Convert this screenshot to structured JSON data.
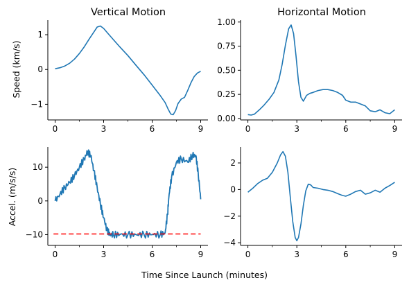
{
  "figure": {
    "xlabel": "Time Since Launch (minutes)"
  },
  "chart_data": [
    {
      "type": "line",
      "title": "Vertical Motion",
      "xlabel": "",
      "ylabel": "Speed (km/s)",
      "xlim": [
        -0.45,
        9.45
      ],
      "ylim": [
        -1.45,
        1.42
      ],
      "xticks": [
        0,
        3,
        6,
        9
      ],
      "xticklabels": [
        "0",
        "3",
        "6",
        "9"
      ],
      "xminor": [
        1.5,
        4.5,
        7.5
      ],
      "yticks": [
        -1,
        0,
        1
      ],
      "yticklabels": [
        "−1",
        "0",
        "1"
      ],
      "series": [
        {
          "color": "#1f77b4",
          "noise": 0,
          "x": [
            0,
            0.3,
            0.6,
            0.9,
            1.2,
            1.5,
            1.8,
            2.1,
            2.4,
            2.6,
            2.8,
            3.0,
            3.3,
            3.6,
            4.0,
            4.5,
            5.0,
            5.5,
            6.0,
            6.5,
            6.8,
            7.0,
            7.15,
            7.3,
            7.45,
            7.6,
            7.8,
            8.0,
            8.2,
            8.4,
            8.6,
            8.8,
            9.0
          ],
          "y": [
            0.02,
            0.05,
            0.1,
            0.18,
            0.3,
            0.46,
            0.65,
            0.87,
            1.08,
            1.22,
            1.25,
            1.18,
            1.02,
            0.86,
            0.65,
            0.4,
            0.12,
            -0.15,
            -0.45,
            -0.75,
            -0.95,
            -1.15,
            -1.28,
            -1.3,
            -1.18,
            -0.98,
            -0.85,
            -0.8,
            -0.6,
            -0.38,
            -0.2,
            -0.1,
            -0.05
          ]
        }
      ]
    },
    {
      "type": "line",
      "title": "Horizontal Motion",
      "xlabel": "",
      "ylabel": "",
      "xlim": [
        -0.45,
        9.45
      ],
      "ylim": [
        -0.015,
        1.02
      ],
      "xticks": [
        0,
        3,
        6,
        9
      ],
      "xticklabels": [
        "0",
        "3",
        "6",
        "9"
      ],
      "xminor": [
        1.5,
        4.5,
        7.5
      ],
      "yticks": [
        0,
        0.25,
        0.5,
        0.75,
        1.0
      ],
      "yticklabels": [
        "0.00",
        "0.25",
        "0.50",
        "0.75",
        "1.00"
      ],
      "series": [
        {
          "color": "#1f77b4",
          "noise": 0,
          "x": [
            0,
            0.2,
            0.4,
            0.7,
            1.0,
            1.3,
            1.6,
            1.9,
            2.1,
            2.3,
            2.5,
            2.65,
            2.8,
            2.95,
            3.1,
            3.25,
            3.4,
            3.6,
            3.8,
            4.0,
            4.3,
            4.6,
            4.9,
            5.2,
            5.5,
            5.8,
            6.0,
            6.3,
            6.6,
            6.9,
            7.2,
            7.5,
            7.8,
            8.1,
            8.4,
            8.7,
            9.0
          ],
          "y": [
            0.04,
            0.035,
            0.045,
            0.09,
            0.14,
            0.2,
            0.27,
            0.4,
            0.56,
            0.76,
            0.93,
            0.97,
            0.88,
            0.65,
            0.38,
            0.22,
            0.18,
            0.24,
            0.26,
            0.27,
            0.29,
            0.3,
            0.3,
            0.29,
            0.27,
            0.24,
            0.19,
            0.17,
            0.17,
            0.15,
            0.13,
            0.08,
            0.07,
            0.09,
            0.06,
            0.05,
            0.09
          ]
        }
      ]
    },
    {
      "type": "line",
      "title": "",
      "xlabel": "",
      "ylabel": "Accel. (m/s/s)",
      "xlim": [
        -0.45,
        9.45
      ],
      "ylim": [
        -13.2,
        16.0
      ],
      "xticks": [
        0,
        3,
        6,
        9
      ],
      "xticklabels": [
        "0",
        "3",
        "6",
        "9"
      ],
      "xminor": [
        1.5,
        4.5,
        7.5
      ],
      "yticks": [
        -10,
        0,
        10
      ],
      "yticklabels": [
        "−10",
        "0",
        "10"
      ],
      "series": [
        {
          "color": "#1f77b4",
          "noise": 0.5,
          "x": [
            0,
            0.3,
            0.6,
            0.9,
            1.2,
            1.5,
            1.8,
            2.0,
            2.2,
            2.4,
            2.6,
            2.8,
            3.0,
            3.2,
            3.4,
            3.6,
            4.0,
            4.5,
            5.0,
            5.5,
            6.0,
            6.5,
            6.8,
            6.95,
            7.05,
            7.2,
            7.5,
            7.8,
            8.2,
            8.5,
            8.7,
            8.85,
            9.0
          ],
          "y": [
            0,
            2,
            4,
            5.5,
            7.5,
            10,
            12.5,
            14.5,
            13.5,
            9,
            4,
            -1,
            -5,
            -8.5,
            -10,
            -10,
            -10,
            -10,
            -10,
            -10,
            -10,
            -10,
            -9.5,
            -4,
            2,
            7,
            11.5,
            12.5,
            11.5,
            13.5,
            13.5,
            8,
            0.5
          ]
        },
        {
          "color": "#ff0000",
          "dash": true,
          "noise": 0,
          "x": [
            -0.1,
            9.0
          ],
          "y": [
            -9.8,
            -9.8
          ]
        }
      ]
    },
    {
      "type": "line",
      "title": "",
      "xlabel": "",
      "ylabel": "",
      "xlim": [
        -0.45,
        9.45
      ],
      "ylim": [
        -4.2,
        3.2
      ],
      "xticks": [
        0,
        3,
        6,
        9
      ],
      "xticklabels": [
        "0",
        "3",
        "6",
        "9"
      ],
      "xminor": [
        1.5,
        4.5,
        7.5
      ],
      "yticks": [
        -4,
        -2,
        0,
        2
      ],
      "yticklabels": [
        "−4",
        "−2",
        "0",
        "2"
      ],
      "series": [
        {
          "color": "#1f77b4",
          "noise": 0,
          "x": [
            0,
            0.3,
            0.6,
            0.9,
            1.2,
            1.5,
            1.8,
            2.0,
            2.15,
            2.3,
            2.45,
            2.6,
            2.75,
            2.9,
            3.0,
            3.1,
            3.25,
            3.4,
            3.55,
            3.7,
            3.85,
            4.0,
            4.3,
            4.6,
            4.9,
            5.2,
            5.5,
            5.8,
            6.0,
            6.3,
            6.6,
            6.9,
            7.2,
            7.5,
            7.8,
            8.1,
            8.4,
            8.7,
            9.0
          ],
          "y": [
            -0.2,
            0.1,
            0.45,
            0.7,
            0.85,
            1.3,
            2.0,
            2.6,
            2.85,
            2.5,
            1.3,
            -0.6,
            -2.4,
            -3.6,
            -3.85,
            -3.6,
            -2.6,
            -1.2,
            -0.1,
            0.4,
            0.35,
            0.15,
            0.1,
            0.0,
            -0.05,
            -0.15,
            -0.3,
            -0.45,
            -0.5,
            -0.35,
            -0.15,
            -0.05,
            -0.35,
            -0.25,
            -0.05,
            -0.2,
            0.1,
            0.3,
            0.55
          ]
        }
      ]
    }
  ]
}
